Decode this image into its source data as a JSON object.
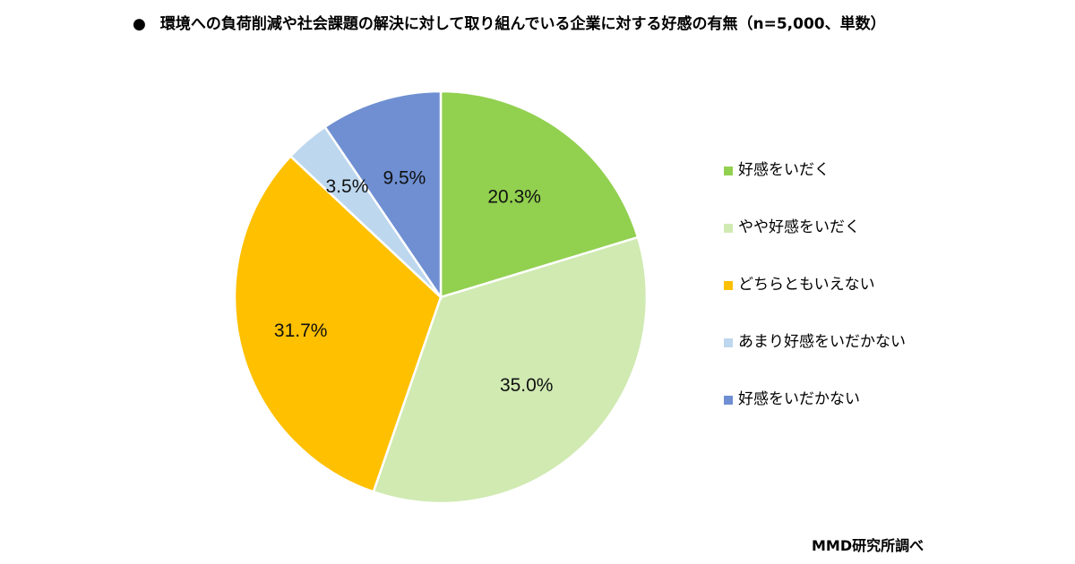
{
  "chart_data": {
    "type": "pie",
    "title": "環境への負荷削減や社会課題の解決に対して取り組んでいる企業に対する好感の有無（n=5,000、単数）",
    "title_bullet": "●",
    "source": "MMD研究所調べ",
    "legend_position": "right",
    "start_angle_deg": 0,
    "direction": "clockwise",
    "slices": [
      {
        "label": "好感をいだく",
        "value": 20.3,
        "display": "20.3%",
        "color": "#92D050"
      },
      {
        "label": "やや好感をいだく",
        "value": 35.0,
        "display": "35.0%",
        "color": "#D0EAB2"
      },
      {
        "label": "どちらともいえない",
        "value": 31.7,
        "display": "31.7%",
        "color": "#FFC000"
      },
      {
        "label": "あまり好感をいだかない",
        "value": 3.5,
        "display": "3.5%",
        "color": "#BDD7EE"
      },
      {
        "label": "好感をいだかない",
        "value": 9.5,
        "display": "9.5%",
        "color": "#6F8FD2"
      }
    ]
  }
}
